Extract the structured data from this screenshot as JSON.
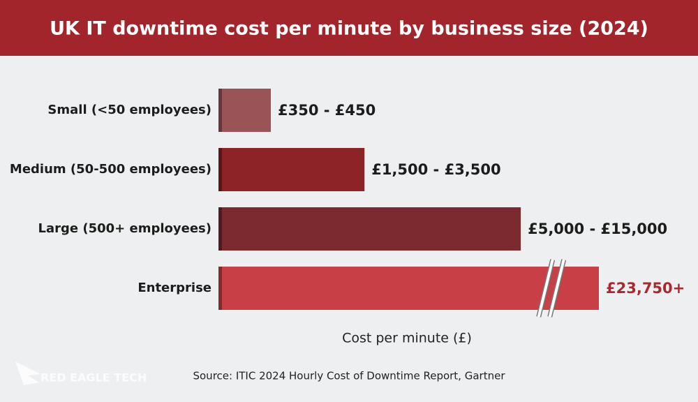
{
  "chart_data": {
    "type": "range-bar",
    "title": "UK IT downtime cost per minute by business size (2024)",
    "categories": [
      "Small (<50 employees)",
      "Medium (50-500 employees)",
      "Large (500+ employees)",
      "Enterprise"
    ],
    "low": [
      350,
      1500,
      5000,
      23750
    ],
    "high": [
      450,
      3500,
      15000,
      null
    ],
    "value_labels": [
      "£350 - £450",
      "£1,500 - £3,500",
      "£5,000 - £15,000",
      "£23,750+"
    ],
    "colors": [
      "#9a5357",
      "#8e2327",
      "#7b2a30",
      "#c84046"
    ],
    "value_label_colors": [
      "#1c1c1c",
      "#1c1c1c",
      "#1c1c1c",
      "#a8292f"
    ],
    "axis_break": true,
    "xlabel": "Cost per minute (£)",
    "source": "Source: ITIC 2024 Hourly Cost of Downtime Report, Gartner",
    "logo": "RED EAGLE TECH"
  }
}
